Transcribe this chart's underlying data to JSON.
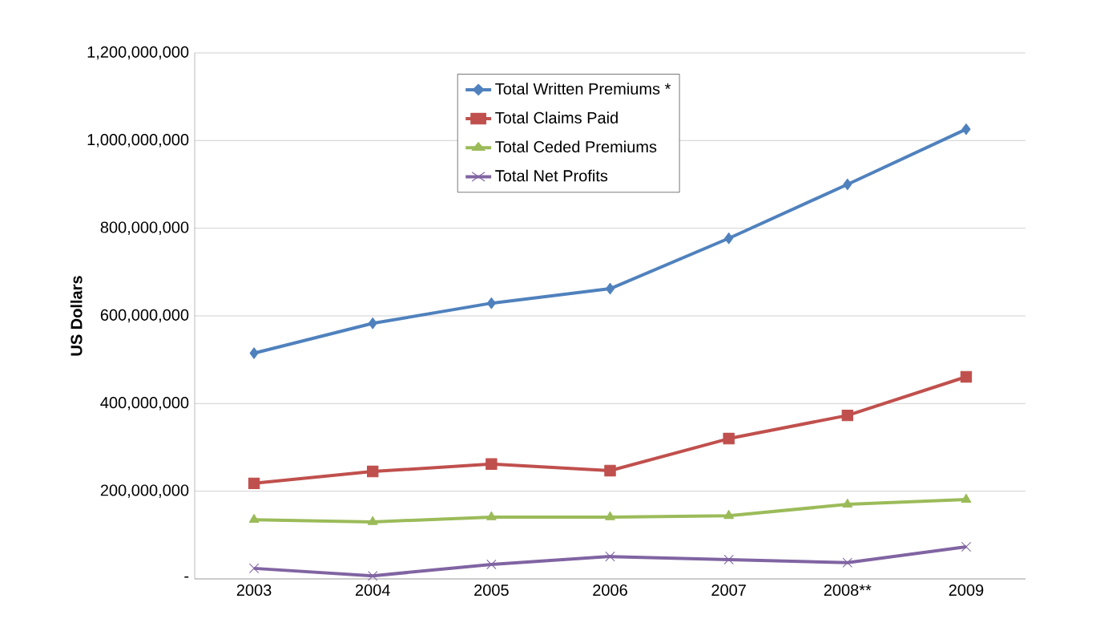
{
  "chart_data": {
    "type": "line",
    "ylabel": "US Dollars",
    "categories": [
      "2003",
      "2004",
      "2005",
      "2006",
      "2007",
      "2008**",
      "2009"
    ],
    "series": [
      {
        "name": "Total Written Premiums *",
        "color": "#4f81bd",
        "marker": "diamond",
        "values": [
          515000000,
          583000000,
          629000000,
          662000000,
          777000000,
          900000000,
          1026000000
        ]
      },
      {
        "name": "Total Claims Paid",
        "color": "#c0504d",
        "marker": "square",
        "values": [
          218000000,
          245000000,
          262000000,
          247000000,
          320000000,
          373000000,
          461000000
        ]
      },
      {
        "name": "Total Ceded Premiums",
        "color": "#9bbb59",
        "marker": "triangle",
        "values": [
          135000000,
          130000000,
          141000000,
          141000000,
          144000000,
          170000000,
          181000000
        ]
      },
      {
        "name": "Total Net Profits",
        "color": "#8064a2",
        "marker": "cross",
        "values": [
          24000000,
          7000000,
          33000000,
          51000000,
          44000000,
          37000000,
          73000000
        ]
      }
    ],
    "ylim": [
      0,
      1200000000
    ],
    "yticks": [
      {
        "value": 0,
        "label": "-"
      },
      {
        "value": 200000000,
        "label": "200,000,000"
      },
      {
        "value": 400000000,
        "label": "400,000,000"
      },
      {
        "value": 600000000,
        "label": "600,000,000"
      },
      {
        "value": 800000000,
        "label": "800,000,000"
      },
      {
        "value": 1000000000,
        "label": "1,000,000,000"
      },
      {
        "value": 1200000000,
        "label": "1,200,000,000"
      }
    ],
    "grid": "y",
    "legend": "top"
  }
}
